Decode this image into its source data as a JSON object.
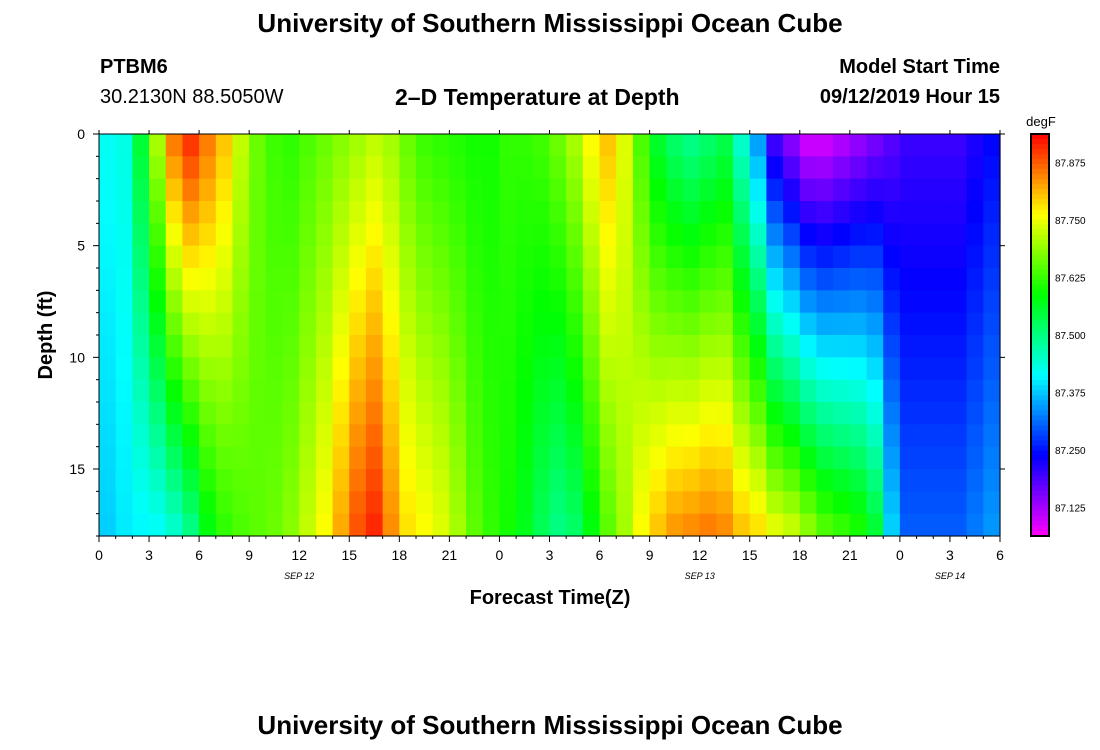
{
  "page": {
    "title_top": "University of Southern Mississippi Ocean Cube",
    "title_bottom": "University of Southern Mississippi Ocean Cube",
    "station_id": "PTBM6",
    "station_coords": "30.2130N 88.5050W",
    "plot_title": "2–D Temperature at Depth",
    "model_start_label": "Model Start Time",
    "model_start_value": "09/12/2019 Hour 15"
  },
  "chart_data": {
    "type": "heatmap",
    "title": "2–D Temperature at Depth",
    "xlabel": "Forecast Time(Z)",
    "ylabel": "Depth (ft)",
    "xlim": [
      0,
      54
    ],
    "ylim": [
      0,
      18
    ],
    "x_ticks": [
      {
        "value": 0,
        "label": "0"
      },
      {
        "value": 3,
        "label": "3"
      },
      {
        "value": 6,
        "label": "6"
      },
      {
        "value": 9,
        "label": "9"
      },
      {
        "value": 12,
        "label": "12"
      },
      {
        "value": 15,
        "label": "15"
      },
      {
        "value": 18,
        "label": "18"
      },
      {
        "value": 21,
        "label": "21"
      },
      {
        "value": 24,
        "label": "0"
      },
      {
        "value": 27,
        "label": "3"
      },
      {
        "value": 30,
        "label": "6"
      },
      {
        "value": 33,
        "label": "9"
      },
      {
        "value": 36,
        "label": "12"
      },
      {
        "value": 39,
        "label": "15"
      },
      {
        "value": 42,
        "label": "18"
      },
      {
        "value": 45,
        "label": "21"
      },
      {
        "value": 48,
        "label": "0"
      },
      {
        "value": 51,
        "label": "3"
      },
      {
        "value": 54,
        "label": "6"
      }
    ],
    "date_labels": [
      {
        "value": 12,
        "label": "SEP 12"
      },
      {
        "value": 36,
        "label": "SEP 13"
      },
      {
        "value": 51,
        "label": "SEP 14"
      }
    ],
    "y_ticks": [
      {
        "value": 0,
        "label": "0"
      },
      {
        "value": 5,
        "label": "5"
      },
      {
        "value": 10,
        "label": "10"
      },
      {
        "value": 15,
        "label": "15"
      }
    ],
    "colorbar": {
      "unit": "degF",
      "min": 87.0625,
      "max": 87.9375,
      "ticks": [
        {
          "value": 87.125,
          "label": "87.125"
        },
        {
          "value": 87.25,
          "label": "87.250"
        },
        {
          "value": 87.375,
          "label": "87.375"
        },
        {
          "value": 87.5,
          "label": "87.500"
        },
        {
          "value": 87.625,
          "label": "87.625"
        },
        {
          "value": 87.75,
          "label": "87.750"
        },
        {
          "value": 87.875,
          "label": "87.875"
        }
      ]
    },
    "depth_levels": 18,
    "time_steps": 54,
    "column_profiles": [
      {
        "t": 0,
        "top": 87.42,
        "bottom": 87.38
      },
      {
        "t": 1,
        "top": 87.43,
        "bottom": 87.4
      },
      {
        "t": 2,
        "top": 87.55,
        "bottom": 87.41
      },
      {
        "t": 3,
        "top": 87.7,
        "bottom": 87.42
      },
      {
        "t": 4,
        "top": 87.85,
        "bottom": 87.45
      },
      {
        "t": 5,
        "top": 87.9,
        "bottom": 87.5
      },
      {
        "t": 6,
        "top": 87.85,
        "bottom": 87.58
      },
      {
        "t": 7,
        "top": 87.8,
        "bottom": 87.62
      },
      {
        "t": 8,
        "top": 87.72,
        "bottom": 87.64
      },
      {
        "t": 9,
        "top": 87.66,
        "bottom": 87.65
      },
      {
        "t": 10,
        "top": 87.63,
        "bottom": 87.66
      },
      {
        "t": 11,
        "top": 87.62,
        "bottom": 87.68
      },
      {
        "t": 12,
        "top": 87.64,
        "bottom": 87.72
      },
      {
        "t": 13,
        "top": 87.66,
        "bottom": 87.76
      },
      {
        "t": 14,
        "top": 87.68,
        "bottom": 87.82
      },
      {
        "t": 15,
        "top": 87.7,
        "bottom": 87.88
      },
      {
        "t": 16,
        "top": 87.72,
        "bottom": 87.91
      },
      {
        "t": 17,
        "top": 87.7,
        "bottom": 87.84
      },
      {
        "t": 18,
        "top": 87.66,
        "bottom": 87.78
      },
      {
        "t": 19,
        "top": 87.63,
        "bottom": 87.76
      },
      {
        "t": 20,
        "top": 87.62,
        "bottom": 87.74
      },
      {
        "t": 21,
        "top": 87.61,
        "bottom": 87.7
      },
      {
        "t": 22,
        "top": 87.6,
        "bottom": 87.65
      },
      {
        "t": 23,
        "top": 87.6,
        "bottom": 87.62
      },
      {
        "t": 24,
        "top": 87.62,
        "bottom": 87.6
      },
      {
        "t": 25,
        "top": 87.62,
        "bottom": 87.57
      },
      {
        "t": 26,
        "top": 87.63,
        "bottom": 87.53
      },
      {
        "t": 27,
        "top": 87.66,
        "bottom": 87.5
      },
      {
        "t": 28,
        "top": 87.7,
        "bottom": 87.52
      },
      {
        "t": 29,
        "top": 87.76,
        "bottom": 87.58
      },
      {
        "t": 30,
        "top": 87.8,
        "bottom": 87.65
      },
      {
        "t": 31,
        "top": 87.74,
        "bottom": 87.7
      },
      {
        "t": 32,
        "top": 87.64,
        "bottom": 87.76
      },
      {
        "t": 33,
        "top": 87.56,
        "bottom": 87.8
      },
      {
        "t": 34,
        "top": 87.52,
        "bottom": 87.83
      },
      {
        "t": 35,
        "top": 87.5,
        "bottom": 87.84
      },
      {
        "t": 36,
        "top": 87.52,
        "bottom": 87.85
      },
      {
        "t": 37,
        "top": 87.54,
        "bottom": 87.84
      },
      {
        "t": 38,
        "top": 87.45,
        "bottom": 87.8
      },
      {
        "t": 39,
        "top": 87.35,
        "bottom": 87.78
      },
      {
        "t": 40,
        "top": 87.2,
        "bottom": 87.74
      },
      {
        "t": 41,
        "top": 87.15,
        "bottom": 87.72
      },
      {
        "t": 42,
        "top": 87.1,
        "bottom": 87.68
      },
      {
        "t": 43,
        "top": 87.1,
        "bottom": 87.64
      },
      {
        "t": 44,
        "top": 87.12,
        "bottom": 87.62
      },
      {
        "t": 45,
        "top": 87.14,
        "bottom": 87.6
      },
      {
        "t": 46,
        "top": 87.16,
        "bottom": 87.55
      },
      {
        "t": 47,
        "top": 87.18,
        "bottom": 87.38
      },
      {
        "t": 48,
        "top": 87.2,
        "bottom": 87.3
      },
      {
        "t": 49,
        "top": 87.2,
        "bottom": 87.3
      },
      {
        "t": 50,
        "top": 87.2,
        "bottom": 87.3
      },
      {
        "t": 51,
        "top": 87.2,
        "bottom": 87.3
      },
      {
        "t": 52,
        "top": 87.22,
        "bottom": 87.32
      },
      {
        "t": 53,
        "top": 87.24,
        "bottom": 87.34
      }
    ]
  }
}
